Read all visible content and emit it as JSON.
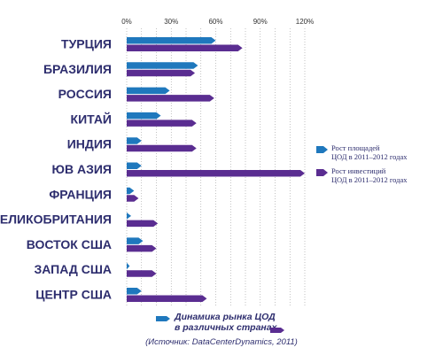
{
  "chart_data": {
    "type": "bar",
    "orientation": "horizontal",
    "categories": [
      "ТУРЦИЯ",
      "БРАЗИЛИЯ",
      "РОССИЯ",
      "КИТАЙ",
      "ИНДИЯ",
      "ЮВ АЗИЯ",
      "ФРАНЦИЯ",
      "ВЕЛИКОБРИТАНИЯ",
      "ВОСТОК США",
      "ЗАПАД США",
      "ЦЕНТР США"
    ],
    "series": [
      {
        "name": "Рост площадей ЦОД в 2011–2012 годах",
        "color": "#1f78bd",
        "values": [
          60,
          48,
          29,
          23,
          10,
          10,
          5,
          3,
          11,
          2,
          10
        ]
      },
      {
        "name": "Рост инвестиций ЦОД в 2011–2012 годах",
        "color": "#5a2d91",
        "values": [
          78,
          46,
          59,
          47,
          47,
          120,
          8,
          21,
          20,
          20,
          54
        ]
      }
    ],
    "x_ticks": [
      "0%",
      "30%",
      "60%",
      "90%",
      "120%"
    ],
    "tick_values": [
      0,
      30,
      60,
      90,
      120
    ],
    "xlim": [
      0,
      120
    ],
    "grid": "vertical-dotted",
    "legend": {
      "placement": "right",
      "entries": [
        {
          "line1": "Рост площадей",
          "line2": "ЦОД в 2011–2012 годах"
        },
        {
          "line1": "Рост инвестиций",
          "line2": "ЦОД в 2011–2012 годах"
        }
      ]
    },
    "title_line1": "Динамика рынка ЦОД",
    "title_line2": "в различных странах",
    "source": "(Источник: DataCenterDynamics, 2011)"
  }
}
